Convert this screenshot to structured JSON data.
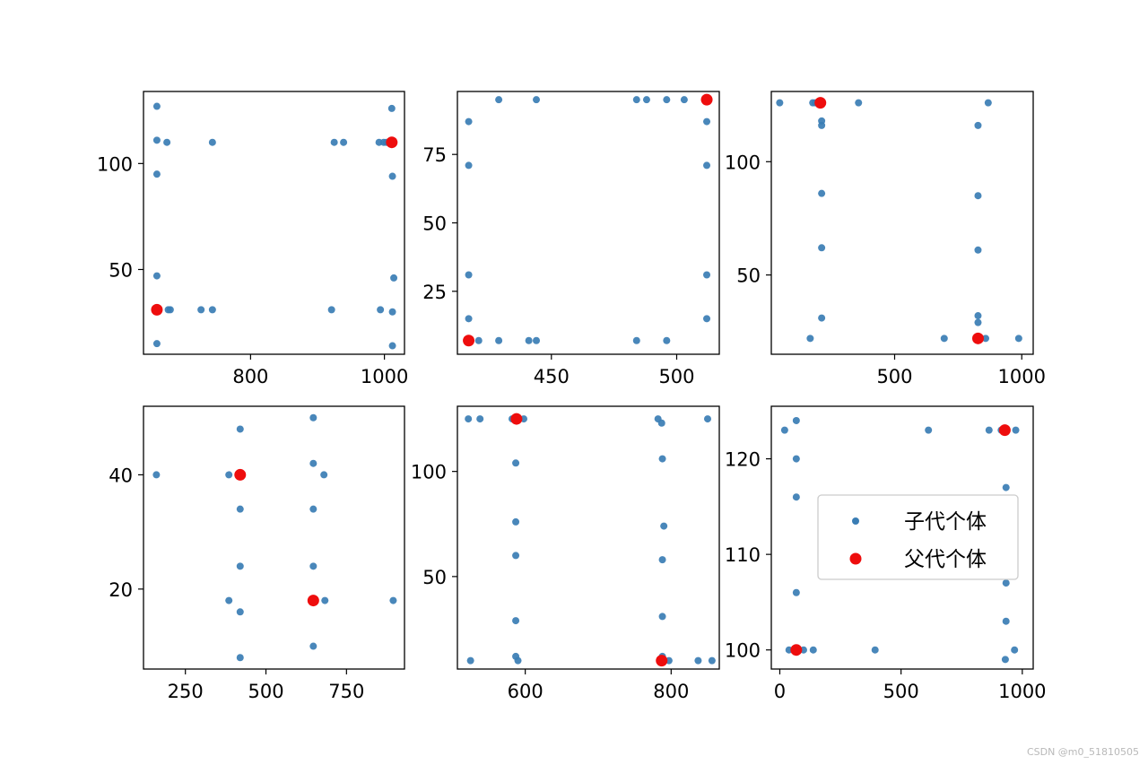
{
  "watermark": "CSDN @m0_51810505",
  "colors": {
    "child": "#3a7db4",
    "parent": "#ee0d0d"
  },
  "legend": {
    "child_label": "子代个体",
    "parent_label": "父代个体"
  },
  "chart_data": [
    {
      "type": "scatter",
      "xlim": [
        640,
        1030
      ],
      "ylim": [
        10,
        134
      ],
      "xticks": [
        800,
        1000
      ],
      "yticks": [
        50,
        100
      ],
      "series": [
        {
          "role": "child",
          "points": [
            [
              660,
              127
            ],
            [
              660,
              111
            ],
            [
              660,
              95
            ],
            [
              660,
              47
            ],
            [
              660,
              15
            ],
            [
              675,
              110
            ],
            [
              677,
              31
            ],
            [
              680,
              31
            ],
            [
              726,
              31
            ],
            [
              743,
              31
            ],
            [
              743,
              110
            ],
            [
              921,
              31
            ],
            [
              925,
              110
            ],
            [
              939,
              110
            ],
            [
              992,
              110
            ],
            [
              999,
              110
            ],
            [
              1003,
              110
            ],
            [
              994,
              31
            ],
            [
              1011,
              126
            ],
            [
              1012,
              94
            ],
            [
              1012,
              30
            ],
            [
              1012,
              14
            ],
            [
              1014,
              46
            ]
          ]
        },
        {
          "role": "parent",
          "points": [
            [
              660,
              31
            ],
            [
              1011,
              110
            ]
          ]
        }
      ]
    },
    {
      "type": "scatter",
      "xlim": [
        412.5,
        517
      ],
      "ylim": [
        2,
        98
      ],
      "xticks": [
        450,
        500
      ],
      "yticks": [
        25,
        50,
        75
      ],
      "series": [
        {
          "role": "child",
          "points": [
            [
              417,
              87
            ],
            [
              417,
              71
            ],
            [
              417,
              31
            ],
            [
              417,
              15
            ],
            [
              417,
              7
            ],
            [
              421,
              7
            ],
            [
              429,
              95
            ],
            [
              429,
              7
            ],
            [
              441,
              7
            ],
            [
              444,
              95
            ],
            [
              444,
              7
            ],
            [
              484,
              7
            ],
            [
              484,
              95
            ],
            [
              488,
              95
            ],
            [
              496,
              95
            ],
            [
              496,
              7
            ],
            [
              503,
              95
            ],
            [
              512,
              87
            ],
            [
              512,
              71
            ],
            [
              512,
              31
            ],
            [
              512,
              15
            ]
          ]
        },
        {
          "role": "parent",
          "points": [
            [
              417,
              7
            ],
            [
              512,
              95
            ]
          ]
        }
      ]
    },
    {
      "type": "scatter",
      "xlim": [
        15,
        1045
      ],
      "ylim": [
        15,
        131
      ],
      "xticks": [
        500,
        1000
      ],
      "yticks": [
        50,
        100
      ],
      "series": [
        {
          "role": "child",
          "points": [
            [
              48,
              126
            ],
            [
              168,
              22
            ],
            [
              178,
              126
            ],
            [
              188,
              126
            ],
            [
              213,
              118
            ],
            [
              213,
              116
            ],
            [
              213,
              86
            ],
            [
              213,
              62
            ],
            [
              213,
              31
            ],
            [
              358,
              126
            ],
            [
              695,
              22
            ],
            [
              828,
              116
            ],
            [
              828,
              85
            ],
            [
              828,
              61
            ],
            [
              828,
              32
            ],
            [
              828,
              29
            ],
            [
              858,
              22
            ],
            [
              868,
              126
            ],
            [
              988,
              22
            ]
          ]
        },
        {
          "role": "parent",
          "points": [
            [
              208,
              126
            ],
            [
              828,
              22
            ]
          ]
        }
      ]
    },
    {
      "type": "scatter",
      "xlim": [
        120,
        930
      ],
      "ylim": [
        6,
        52
      ],
      "xticks": [
        250,
        500,
        750
      ],
      "yticks": [
        20,
        40
      ],
      "series": [
        {
          "role": "child",
          "points": [
            [
              160,
              40
            ],
            [
              385,
              40
            ],
            [
              385,
              18
            ],
            [
              420,
              48
            ],
            [
              420,
              34
            ],
            [
              420,
              24
            ],
            [
              420,
              16
            ],
            [
              420,
              8
            ],
            [
              647,
              50
            ],
            [
              647,
              42
            ],
            [
              647,
              34
            ],
            [
              647,
              24
            ],
            [
              647,
              10
            ],
            [
              680,
              40
            ],
            [
              683,
              18
            ],
            [
              895,
              18
            ]
          ]
        },
        {
          "role": "parent",
          "points": [
            [
              420,
              40
            ],
            [
              647,
              18
            ]
          ]
        }
      ]
    },
    {
      "type": "scatter",
      "xlim": [
        507,
        866
      ],
      "ylim": [
        6,
        131
      ],
      "xticks": [
        600,
        800
      ],
      "yticks": [
        50,
        100
      ],
      "series": [
        {
          "role": "child",
          "points": [
            [
              522,
              125
            ],
            [
              538,
              125
            ],
            [
              582,
              125
            ],
            [
              590,
              125
            ],
            [
              598,
              125
            ],
            [
              525,
              10
            ],
            [
              587,
              104
            ],
            [
              587,
              76
            ],
            [
              587,
              60
            ],
            [
              587,
              29
            ],
            [
              587,
              12
            ],
            [
              590,
              10
            ],
            [
              782,
              125
            ],
            [
              787,
              123
            ],
            [
              788,
              106
            ],
            [
              790,
              74
            ],
            [
              788,
              58
            ],
            [
              788,
              31
            ],
            [
              788,
              12
            ],
            [
              797,
              10
            ],
            [
              837,
              10
            ],
            [
              850,
              125
            ],
            [
              856,
              10
            ]
          ]
        },
        {
          "role": "parent",
          "points": [
            [
              588,
              125
            ],
            [
              787,
              10
            ]
          ]
        }
      ]
    },
    {
      "type": "scatter",
      "xlim": [
        -35,
        1045
      ],
      "ylim": [
        98,
        125.5
      ],
      "xticks": [
        0,
        500,
        1000
      ],
      "yticks": [
        100,
        110,
        120
      ],
      "series": [
        {
          "role": "child",
          "points": [
            [
              20,
              123
            ],
            [
              68,
              124
            ],
            [
              68,
              120
            ],
            [
              68,
              116
            ],
            [
              68,
              106
            ],
            [
              38,
              100
            ],
            [
              98,
              100
            ],
            [
              138,
              100
            ],
            [
              393,
              100
            ],
            [
              613,
              123
            ],
            [
              863,
              123
            ],
            [
              913,
              123
            ],
            [
              933,
              117
            ],
            [
              933,
              107
            ],
            [
              933,
              103
            ],
            [
              930,
              99
            ],
            [
              968,
              100
            ],
            [
              973,
              123
            ]
          ]
        },
        {
          "role": "parent",
          "points": [
            [
              68,
              100
            ],
            [
              928,
              123
            ]
          ]
        }
      ]
    }
  ]
}
